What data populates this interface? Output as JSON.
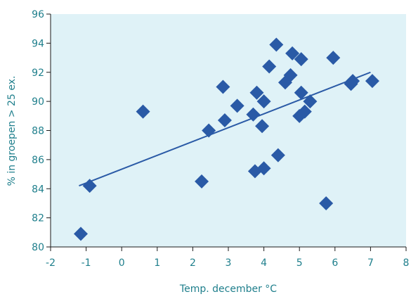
{
  "chart_data": {
    "type": "scatter",
    "title": "",
    "xlabel": "Temp. december °C",
    "ylabel": "% in groepen > 25 ex.",
    "xlim": [
      -2,
      8
    ],
    "ylim": [
      80,
      96
    ],
    "xticks": [
      "-2",
      "-1",
      "0",
      "1",
      "2",
      "3",
      "4",
      "5",
      "6",
      "7",
      "8"
    ],
    "yticks": [
      "80",
      "82",
      "84",
      "86",
      "88",
      "90",
      "92",
      "94",
      "96"
    ],
    "grid": false,
    "legend": "none",
    "marker": "diamond",
    "colors": {
      "plot_background": "#dff2f7",
      "marker": "#2a5aa6",
      "trend_line": "#2a5aa6",
      "text": "#1f7f8c",
      "axis": "#1a1a1a"
    },
    "points": [
      {
        "x": -1.15,
        "y": 80.9
      },
      {
        "x": -0.9,
        "y": 84.2
      },
      {
        "x": 0.6,
        "y": 89.3
      },
      {
        "x": 2.25,
        "y": 84.5
      },
      {
        "x": 2.45,
        "y": 88.0
      },
      {
        "x": 2.85,
        "y": 91.0
      },
      {
        "x": 2.9,
        "y": 88.7
      },
      {
        "x": 3.25,
        "y": 89.7
      },
      {
        "x": 3.7,
        "y": 89.1
      },
      {
        "x": 3.75,
        "y": 85.2
      },
      {
        "x": 3.8,
        "y": 90.6
      },
      {
        "x": 3.95,
        "y": 88.3
      },
      {
        "x": 4.0,
        "y": 85.4
      },
      {
        "x": 4.0,
        "y": 90.0
      },
      {
        "x": 4.15,
        "y": 92.4
      },
      {
        "x": 4.35,
        "y": 93.9
      },
      {
        "x": 4.4,
        "y": 86.3
      },
      {
        "x": 4.6,
        "y": 91.3
      },
      {
        "x": 4.75,
        "y": 91.8
      },
      {
        "x": 4.8,
        "y": 93.3
      },
      {
        "x": 5.0,
        "y": 89.0
      },
      {
        "x": 5.05,
        "y": 90.6
      },
      {
        "x": 5.05,
        "y": 92.9
      },
      {
        "x": 5.15,
        "y": 89.3
      },
      {
        "x": 5.3,
        "y": 90.0
      },
      {
        "x": 5.75,
        "y": 83.0
      },
      {
        "x": 5.95,
        "y": 93.0
      },
      {
        "x": 6.45,
        "y": 91.2
      },
      {
        "x": 6.5,
        "y": 91.4
      },
      {
        "x": 7.05,
        "y": 91.4
      }
    ],
    "trend_line": [
      {
        "x": -1.2,
        "y": 84.2
      },
      {
        "x": 7.0,
        "y": 92.0
      }
    ]
  }
}
